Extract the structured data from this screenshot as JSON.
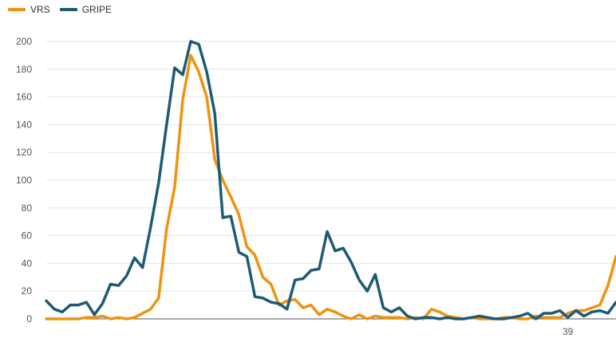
{
  "chart_data": {
    "type": "line",
    "title": "",
    "xlabel": "",
    "ylabel": "",
    "ylim": [
      0,
      200
    ],
    "yticks": [
      0,
      20,
      40,
      60,
      80,
      100,
      120,
      140,
      160,
      180,
      200
    ],
    "xticks": [
      {
        "x": 65,
        "label": "39"
      }
    ],
    "xlim": [
      0,
      71
    ],
    "grid": true,
    "legend_position": "top-left",
    "series": [
      {
        "name": "VRS",
        "color": "#f0920f",
        "x": [
          0,
          1,
          2,
          3,
          4,
          5,
          6,
          7,
          8,
          9,
          10,
          11,
          12,
          13,
          14,
          15,
          16,
          17,
          18,
          19,
          20,
          21,
          22,
          23,
          24,
          25,
          26,
          27,
          28,
          29,
          30,
          31,
          32,
          33,
          34,
          35,
          36,
          37,
          38,
          39,
          40,
          41,
          42,
          43,
          44,
          45,
          46,
          47,
          48,
          49,
          50,
          51,
          52,
          53,
          54,
          55,
          56,
          57,
          58,
          59,
          60,
          61,
          62,
          63,
          64,
          65,
          66,
          67,
          68,
          69,
          70,
          71
        ],
        "values": [
          0,
          0,
          0,
          0,
          0,
          1,
          1,
          2,
          0,
          1,
          0,
          1,
          4,
          7,
          15,
          65,
          95,
          158,
          190,
          178,
          160,
          115,
          100,
          88,
          75,
          52,
          46,
          30,
          25,
          10,
          13,
          14,
          8,
          10,
          3,
          7,
          5,
          2,
          0,
          3,
          0,
          2,
          1,
          1,
          1,
          0,
          1,
          0,
          7,
          5,
          2,
          1,
          0,
          1,
          0,
          0,
          0,
          1,
          1,
          0,
          0,
          2,
          1,
          1,
          1,
          4,
          6,
          6,
          8,
          10,
          24,
          45
        ]
      },
      {
        "name": "GRIPE",
        "color": "#1e5b73",
        "x": [
          0,
          1,
          2,
          3,
          4,
          5,
          6,
          7,
          8,
          9,
          10,
          11,
          12,
          13,
          14,
          15,
          16,
          17,
          18,
          19,
          20,
          21,
          22,
          23,
          24,
          25,
          26,
          27,
          28,
          29,
          30,
          31,
          32,
          33,
          34,
          35,
          36,
          37,
          38,
          39,
          40,
          41,
          42,
          43,
          44,
          45,
          46,
          47,
          48,
          49,
          50,
          51,
          52,
          53,
          54,
          55,
          56,
          57,
          58,
          59,
          60,
          61,
          62,
          63,
          64,
          65,
          66,
          67,
          68,
          69,
          70,
          71
        ],
        "values": [
          13,
          7,
          5,
          10,
          10,
          12,
          3,
          11,
          25,
          24,
          31,
          44,
          37,
          66,
          98,
          140,
          181,
          176,
          200,
          198,
          178,
          148,
          73,
          74,
          48,
          45,
          16,
          15,
          12,
          11,
          7,
          28,
          29,
          35,
          36,
          63,
          49,
          51,
          41,
          28,
          20,
          32,
          8,
          5,
          8,
          2,
          0,
          1,
          1,
          0,
          1,
          0,
          0,
          1,
          2,
          1,
          0,
          0,
          1,
          2,
          4,
          0,
          4,
          4,
          6,
          1,
          6,
          2,
          5,
          6,
          4,
          12
        ]
      }
    ]
  }
}
